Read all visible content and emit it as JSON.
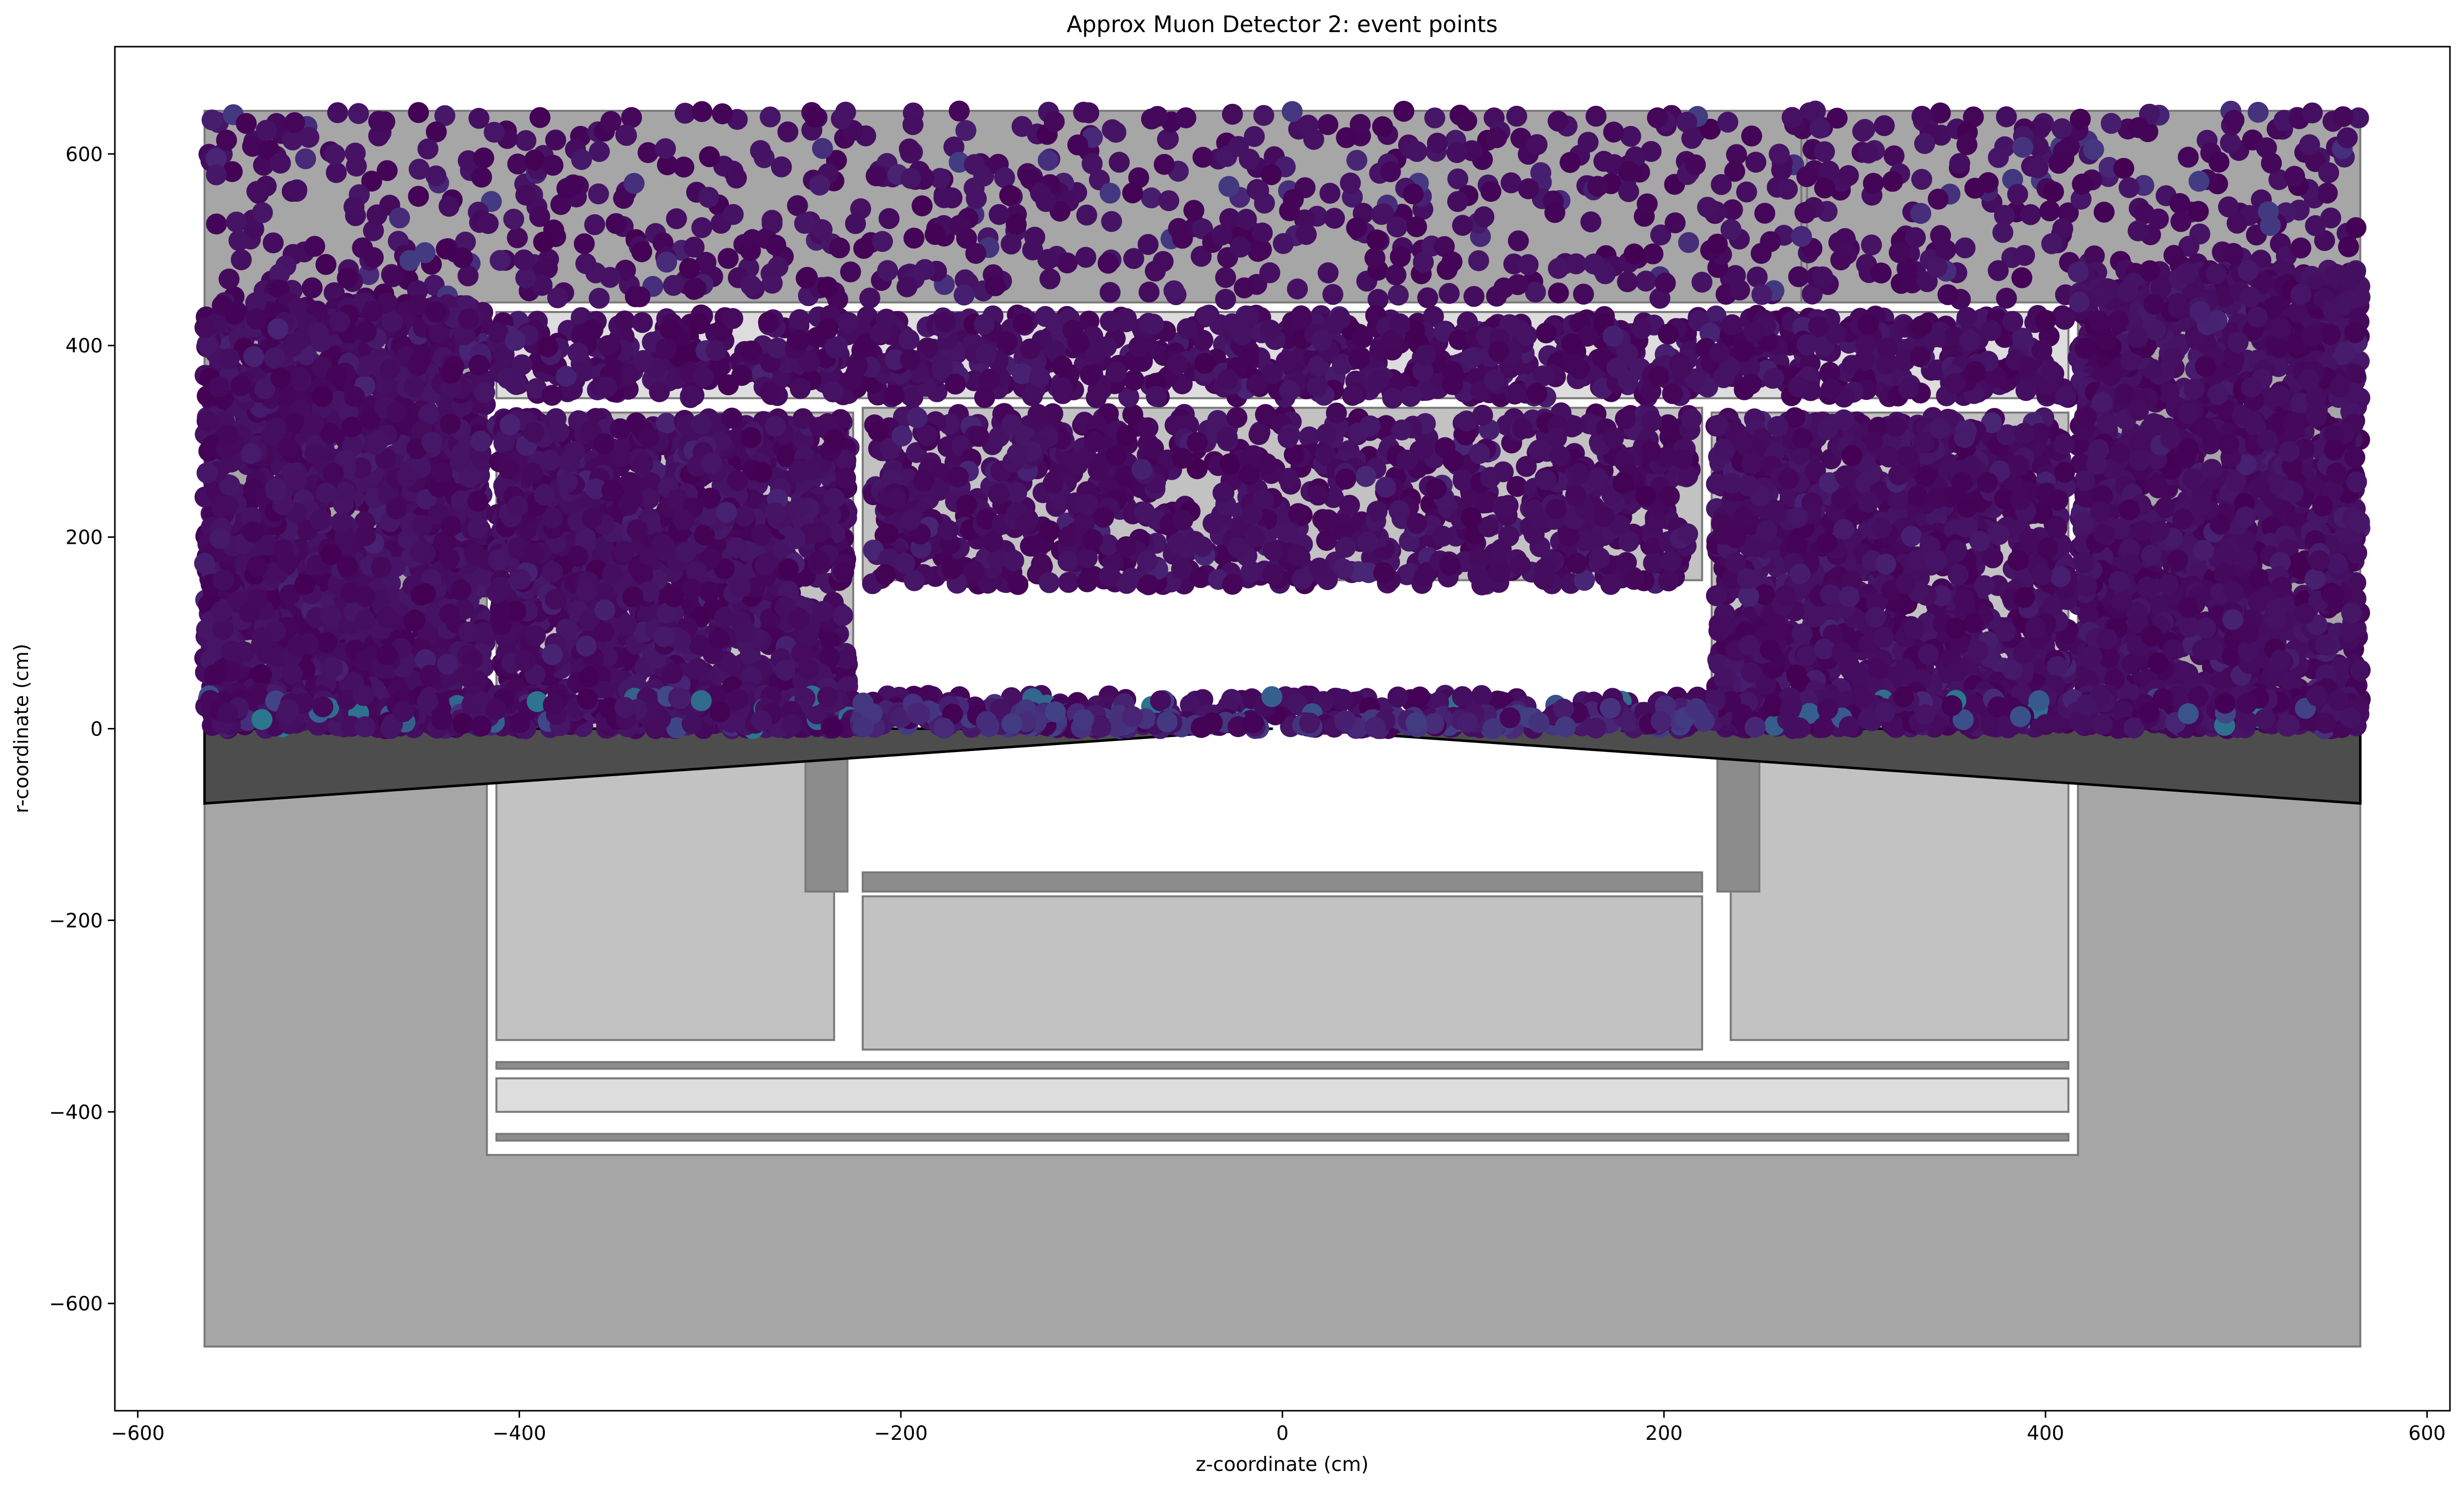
{
  "chart_data": {
    "type": "scatter",
    "title": "Approx Muon Detector 2: event points",
    "xlabel": "z-coordinate (cm)",
    "ylabel": "r-coordinate (cm)",
    "xlim": [
      -612,
      612
    ],
    "ylim": [
      -712,
      712
    ],
    "xticks": [
      -600,
      -400,
      -200,
      0,
      200,
      400,
      600
    ],
    "yticks": [
      -600,
      -400,
      -200,
      0,
      200,
      400,
      600
    ],
    "xtick_labels": [
      "−600",
      "−400",
      "−200",
      "0",
      "200",
      "400",
      "600"
    ],
    "ytick_labels": [
      "−600",
      "−400",
      "−200",
      "0",
      "200",
      "400",
      "600"
    ],
    "grid": false,
    "colormap": "viridis",
    "geometry": [
      {
        "z0": -565,
        "z1": 565,
        "r0": -645,
        "r1": 645,
        "fill": "#a6a6a6"
      },
      {
        "z0": -417,
        "z1": 417,
        "r0": -445,
        "r1": 445,
        "fill": "#ffffff"
      },
      {
        "z0": 272,
        "z1": 275,
        "r0": 445,
        "r1": 645,
        "fill": "#a6a6a6"
      },
      {
        "z0": -412,
        "z1": -235,
        "r0": -325,
        "r1": 0,
        "fill": "#c2c2c2"
      },
      {
        "z0": 235,
        "z1": 412,
        "r0": -325,
        "r1": 0,
        "fill": "#c2c2c2"
      },
      {
        "z0": -220,
        "z1": 220,
        "r0": -335,
        "r1": -175,
        "fill": "#c2c2c2"
      },
      {
        "z0": -220,
        "z1": 220,
        "r0": -170,
        "r1": -150,
        "fill": "#8c8c8c"
      },
      {
        "z0": -250,
        "z1": -228,
        "r0": -170,
        "r1": 0,
        "fill": "#8c8c8c"
      },
      {
        "z0": 228,
        "z1": 250,
        "r0": -170,
        "r1": 0,
        "fill": "#8c8c8c"
      },
      {
        "z0": -412,
        "z1": 412,
        "r0": -355,
        "r1": -348,
        "fill": "#8c8c8c"
      },
      {
        "z0": -412,
        "z1": 412,
        "r0": -400,
        "r1": -365,
        "fill": "#dddddd"
      },
      {
        "z0": -412,
        "z1": 412,
        "r0": -430,
        "r1": -423,
        "fill": "#8c8c8c"
      },
      {
        "z0": -412,
        "z1": -225,
        "r0": 0,
        "r1": 330,
        "fill": "#c2c2c2"
      },
      {
        "z0": 225,
        "z1": 412,
        "r0": 0,
        "r1": 330,
        "fill": "#c2c2c2"
      },
      {
        "z0": -220,
        "z1": 220,
        "r0": 155,
        "r1": 335,
        "fill": "#c2c2c2"
      },
      {
        "z0": -412,
        "z1": 412,
        "r0": 345,
        "r1": 435,
        "fill": "#dddddd"
      }
    ],
    "cone": {
      "z_outer": 565,
      "r_outer": -78,
      "z_tip": 5,
      "r_tip": 0,
      "fill": "#4d4d4d"
    },
    "point_regions": [
      {
        "z0": -565,
        "z1": 565,
        "r0": 448,
        "r1": 645,
        "count": 950,
        "hi": 0.12
      },
      {
        "z0": -565,
        "z1": -417,
        "r0": 0,
        "r1": 445,
        "count": 1800,
        "hi": 0.04
      },
      {
        "z0": 417,
        "z1": 565,
        "r0": 0,
        "r1": 480,
        "count": 1800,
        "hi": 0.04
      },
      {
        "z0": -412,
        "z1": -227,
        "r0": 0,
        "r1": 325,
        "count": 1500,
        "hi": 0.04
      },
      {
        "z0": 227,
        "z1": 412,
        "r0": 0,
        "r1": 325,
        "count": 1500,
        "hi": 0.04
      },
      {
        "z0": -215,
        "z1": 215,
        "r0": 150,
        "r1": 330,
        "count": 1000,
        "hi": 0.05
      },
      {
        "z0": -412,
        "z1": 412,
        "r0": 345,
        "r1": 432,
        "count": 1100,
        "hi": 0.04
      },
      {
        "z0": -565,
        "z1": 565,
        "r0": 0,
        "r1": 35,
        "count": 700,
        "hi": 0.35
      }
    ],
    "cone_point_count": 260,
    "point_radius_cm": 5.5
  }
}
